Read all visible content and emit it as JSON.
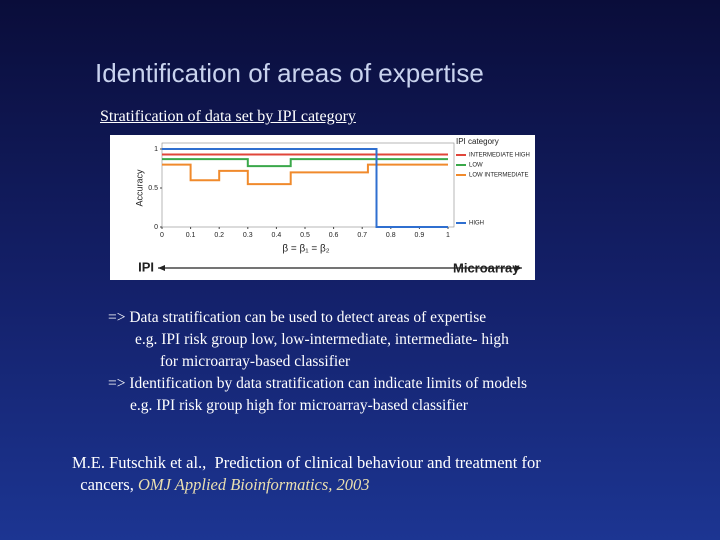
{
  "title": "Identification of areas of expertise",
  "subtitle": "Stratification of data set by IPI category",
  "chart_data": {
    "type": "line",
    "ylabel": "Accuracy",
    "xlabel": "β = β₁ = β₂",
    "legend_title": "IPI category",
    "left_label": "IPI",
    "right_label": "Microarray",
    "x": [
      0,
      0.1,
      0.1,
      0.2,
      0.2,
      0.3,
      0.3,
      0.45,
      0.45,
      0.72,
      0.72,
      0.75,
      0.75,
      1
    ],
    "series": [
      {
        "name": "INTERMEDIATE HIGH",
        "color": "#e0463a",
        "values": [
          0.93,
          0.93,
          0.93,
          0.93,
          0.93,
          0.93,
          0.93,
          0.93,
          0.93,
          0.93,
          0.93,
          0.93,
          0.93,
          0.93
        ]
      },
      {
        "name": "LOW",
        "color": "#3aa84a",
        "values": [
          0.87,
          0.87,
          0.87,
          0.87,
          0.87,
          0.87,
          0.78,
          0.78,
          0.87,
          0.87,
          0.87,
          0.87,
          0.87,
          0.87
        ]
      },
      {
        "name": "LOW INTERMEDIATE",
        "color": "#f08a2c",
        "values": [
          0.8,
          0.8,
          0.6,
          0.6,
          0.72,
          0.72,
          0.55,
          0.55,
          0.7,
          0.7,
          0.8,
          0.8,
          0.8,
          0.8
        ]
      },
      {
        "name": "HIGH",
        "color": "#2f6fd0",
        "values": [
          1,
          1,
          1,
          1,
          1,
          1,
          1,
          1,
          1,
          1,
          1,
          1,
          0,
          0
        ]
      }
    ],
    "xlim": [
      0,
      1
    ],
    "ylim": [
      0,
      1
    ],
    "xticks": [
      0,
      0.1,
      0.2,
      0.3,
      0.4,
      0.5,
      0.6,
      0.7,
      0.8,
      0.9,
      1
    ],
    "yticks": [
      0,
      0.5,
      1
    ]
  },
  "body_lines": [
    "=> Data stratification can be used to detect areas of expertise",
    "e.g. IPI risk group low, low-intermediate, intermediate- high",
    "for microarray-based classifier",
    "=> Identification by data stratification can indicate limits of models",
    "e.g. IPI risk group high for microarray-based classifier"
  ],
  "citation": {
    "authors": "M.E. Futschik et al.,",
    "text": "Prediction of clinical behaviour and treatment for",
    "text2": "cancers,",
    "journal": "OMJ Applied Bioinformatics, 2003"
  }
}
